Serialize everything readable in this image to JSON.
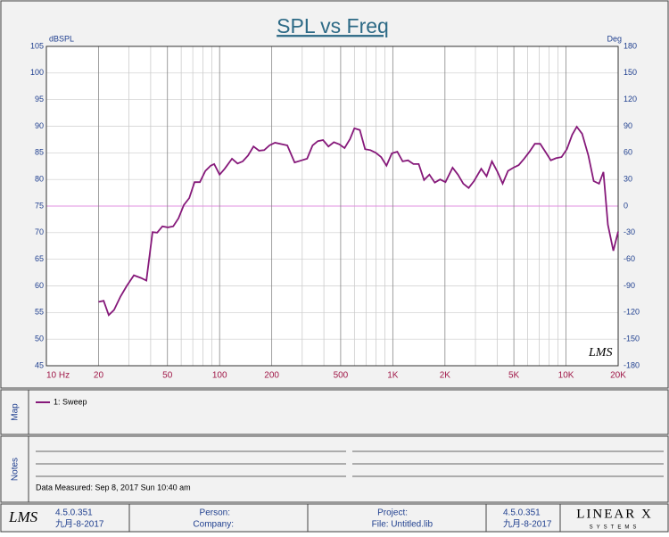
{
  "chart_data": {
    "type": "line",
    "title": "SPL vs Freq",
    "ylabel": "dBSPL",
    "y2label": "Deg",
    "log_x": true,
    "grid": true,
    "xlim": [
      10,
      20000
    ],
    "xticks": [
      {
        "value": 10,
        "label": "10 Hz"
      },
      20,
      50,
      100,
      200,
      500,
      {
        "value": 1000,
        "label": "1K"
      },
      {
        "value": 2000,
        "label": "2K"
      },
      {
        "value": 5000,
        "label": "5K"
      },
      {
        "value": 10000,
        "label": "10K"
      },
      {
        "value": 20000,
        "label": "20K"
      }
    ],
    "xminor": [
      30,
      40,
      60,
      70,
      80,
      90,
      300,
      400,
      600,
      700,
      800,
      900,
      3000,
      4000,
      6000,
      7000,
      8000,
      9000
    ],
    "ylim": [
      45,
      105
    ],
    "yticks": [
      45,
      50,
      55,
      60,
      65,
      70,
      75,
      80,
      85,
      90,
      95,
      100,
      105
    ],
    "y2lim": [
      -180,
      180
    ],
    "y2ticks": [
      -180,
      -150,
      -120,
      -90,
      -60,
      -30,
      0,
      30,
      60,
      90,
      120,
      150,
      180
    ],
    "series": [
      {
        "name": "1: Sweep",
        "color": "#86197a",
        "x": [
          20,
          21.4,
          22.9,
          24.6,
          26.8,
          29.1,
          32,
          35.2,
          37.8,
          41,
          43.6,
          46.8,
          50.2,
          54,
          57.9,
          62.2,
          66.8,
          71.7,
          77,
          82.7,
          88.8,
          93,
          100,
          107,
          118,
          127,
          136,
          146,
          157,
          169,
          181,
          194,
          209,
          230,
          246,
          271,
          298,
          320,
          344,
          369,
          396,
          425,
          457,
          491,
          527,
          566,
          600,
          645,
          692,
          743,
          798,
          857,
          920,
          988,
          1061,
          1140,
          1224,
          1315,
          1411,
          1515,
          1627,
          1747,
          1876,
          2014,
          2214,
          2377,
          2553,
          2742,
          2944,
          3238,
          3477,
          3734,
          4009,
          4305,
          4624,
          4966,
          5333,
          5728,
          6152,
          6607,
          7096,
          7603,
          8166,
          8770,
          9419,
          10116,
          10864,
          11530,
          12387,
          13459,
          14454,
          15524,
          16444,
          17458,
          18750,
          20000
        ],
        "values": [
          57,
          57.2,
          54.5,
          55.5,
          58,
          60,
          62,
          61.5,
          61,
          70.1,
          70,
          71.2,
          71,
          71.2,
          72.7,
          75.2,
          76.5,
          79.5,
          79.5,
          81.6,
          82.6,
          82.9,
          80.9,
          82,
          83.9,
          83,
          83.4,
          84.5,
          86.2,
          85.4,
          85.5,
          86.4,
          86.9,
          86.6,
          86.4,
          83.2,
          83.6,
          83.9,
          86.4,
          87.2,
          87.4,
          86.2,
          87,
          86.6,
          85.9,
          87.6,
          89.6,
          89.3,
          85.7,
          85.5,
          85,
          84.2,
          82.6,
          84.9,
          85.2,
          83.4,
          83.6,
          82.9,
          82.9,
          79.9,
          80.9,
          79.4,
          80,
          79.5,
          82.2,
          80.9,
          79.2,
          78.4,
          79.7,
          82,
          80.6,
          83.4,
          81.5,
          79.2,
          81.6,
          82.2,
          82.7,
          83.9,
          85.2,
          86.7,
          86.7,
          85.2,
          83.6,
          84,
          84.2,
          85.7,
          88.4,
          89.9,
          88.6,
          84.5,
          79.7,
          79.2,
          81.4,
          71.5,
          66.6,
          70.2
        ]
      }
    ]
  },
  "panels": {
    "map": "Map",
    "notes": "Notes",
    "measured": "Data Measured: Sep 8, 2017 Sun 10:40 am"
  },
  "footer": {
    "logo": "LMS",
    "version": "4.5.0.351",
    "date": "九月-8-2017",
    "person": "Person:",
    "company": "Company:",
    "project": "Project:",
    "file": "File: Untitled.lib",
    "version2": "4.5.0.351",
    "date2": "九月-8-2017",
    "brand": "LINEAR X",
    "brand_sub": "SYSTEMS"
  }
}
